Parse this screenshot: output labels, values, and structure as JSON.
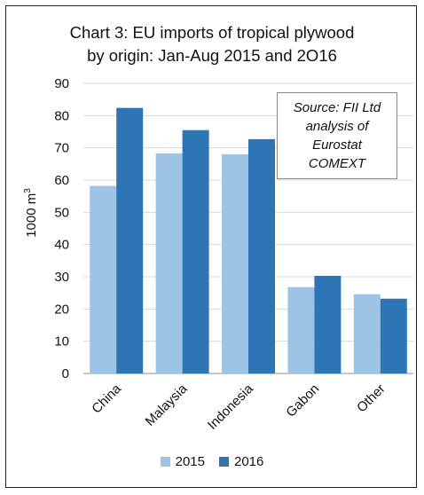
{
  "title_line1": "Chart 3: EU imports of tropical plywood",
  "title_line2": "by origin: Jan-Aug 2015 and 2O16",
  "source": {
    "line1": "Source: FII Ltd",
    "line2": "analysis of",
    "line3": "Eurostat",
    "line4": "COMEXT"
  },
  "colors": {
    "s2015": "#9dc3e6",
    "s2016": "#2e75b6"
  },
  "chart_data": {
    "type": "bar",
    "title": "Chart 3: EU imports of tropical plywood by origin: Jan-Aug 2015 and 2O16",
    "ylabel": "1000 m³",
    "xlabel": "",
    "ylim": [
      0,
      90
    ],
    "yticks": [
      0,
      10,
      20,
      30,
      40,
      50,
      60,
      70,
      80,
      90
    ],
    "categories": [
      "China",
      "Malaysia",
      "Indonesia",
      "Gabon",
      "Other"
    ],
    "series": [
      {
        "name": "2015",
        "values": [
          58.2,
          68.3,
          68.0,
          26.8,
          24.6
        ]
      },
      {
        "name": "2016",
        "values": [
          82.4,
          75.5,
          72.7,
          30.3,
          23.2
        ]
      }
    ],
    "grid": true,
    "legend": "bottom"
  }
}
